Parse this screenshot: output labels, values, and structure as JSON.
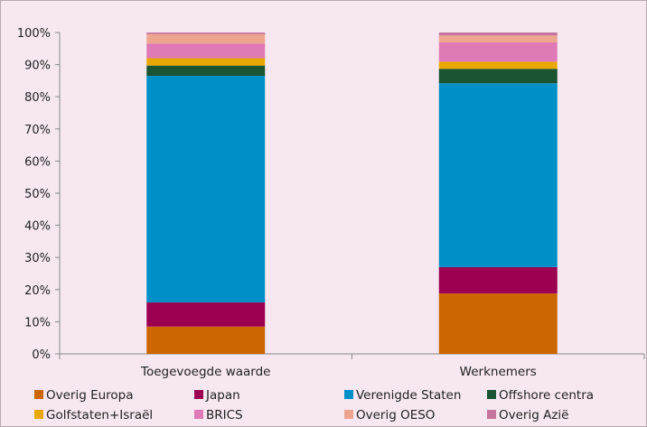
{
  "chart_data": {
    "type": "bar",
    "stacked": true,
    "categories": [
      "Toegevoegde waarde",
      "Werknemers"
    ],
    "ylim": [
      0,
      100
    ],
    "y_ticks": [
      "0%",
      "10%",
      "20%",
      "30%",
      "40%",
      "50%",
      "60%",
      "70%",
      "80%",
      "90%",
      "100%"
    ],
    "grid": false,
    "legend_position": "bottom",
    "series": [
      {
        "name": "Overig Europa",
        "color": "#cc6600",
        "values": [
          8.5,
          18.8
        ]
      },
      {
        "name": "Japan",
        "color": "#9c0050",
        "values": [
          7.5,
          8.2
        ]
      },
      {
        "name": "Verenigde Staten",
        "color": "#0090c8",
        "values": [
          70.5,
          57.2
        ]
      },
      {
        "name": "Offshore centra",
        "color": "#1a5432",
        "values": [
          3.2,
          4.5
        ]
      },
      {
        "name": "Golfstaten+Israël",
        "color": "#e8a800",
        "values": [
          2.3,
          2.2
        ]
      },
      {
        "name": "BRICS",
        "color": "#e07ab7",
        "values": [
          4.5,
          6.0
        ]
      },
      {
        "name": "Overig OESO",
        "color": "#eea590",
        "values": [
          3.0,
          2.2
        ]
      },
      {
        "name": "Overig Azië",
        "color": "#c5749e",
        "values": [
          0.5,
          0.9
        ]
      }
    ]
  }
}
